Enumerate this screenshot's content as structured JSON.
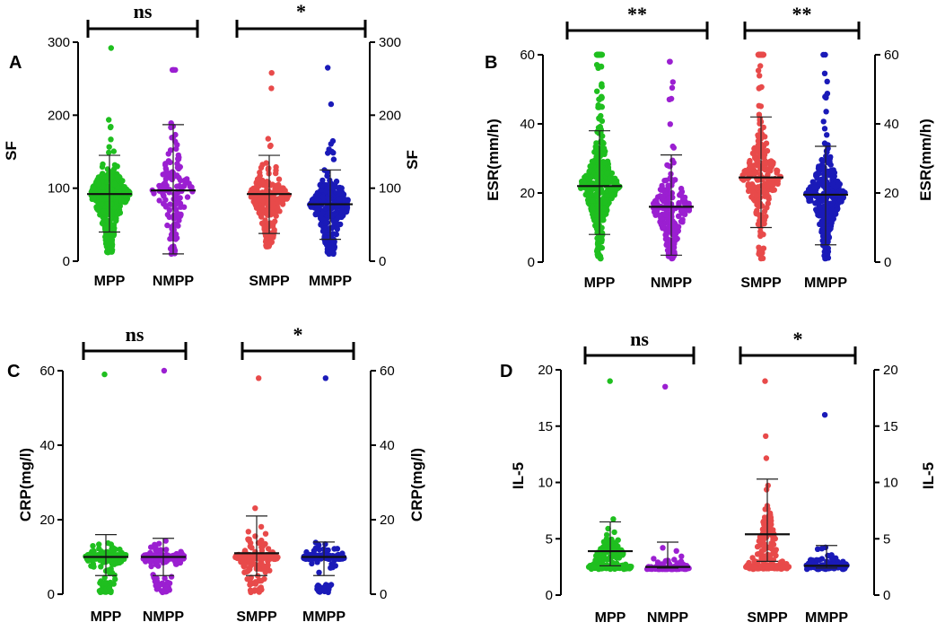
{
  "colors": {
    "MPP": "#1fbf1f",
    "NMPP": "#9b1fd1",
    "SMPP": "#e84a4a",
    "MMPP": "#1a1ab8",
    "axis": "#000000"
  },
  "chart_data": [
    {
      "type": "scatter",
      "panel_label": "A",
      "ylabel_left": "SF",
      "ylabel_right": "SF",
      "ylim": [
        0,
        300
      ],
      "yticks": [
        0,
        100,
        200,
        300
      ],
      "categories": [
        "MPP",
        "NMPP",
        "SMPP",
        "MMPP"
      ],
      "series": [
        {
          "name": "MPP",
          "color": "MPP",
          "mean": 92,
          "sd_low": 40,
          "sd_high": 145,
          "min": 12,
          "max": 292,
          "n": 420,
          "skew": 1.2
        },
        {
          "name": "NMPP",
          "color": "NMPP",
          "mean": 97,
          "sd_low": 10,
          "sd_high": 187,
          "min": 10,
          "max": 262,
          "n": 140,
          "skew": 0.9
        },
        {
          "name": "SMPP",
          "color": "SMPP",
          "mean": 92,
          "sd_low": 38,
          "sd_high": 145,
          "min": 20,
          "max": 258,
          "n": 210,
          "skew": 1.1
        },
        {
          "name": "MMPP",
          "color": "MMPP",
          "mean": 78,
          "sd_low": 30,
          "sd_high": 125,
          "min": 10,
          "max": 265,
          "n": 300,
          "skew": 1.1
        }
      ],
      "comparisons": [
        {
          "between": [
            "MPP",
            "NMPP"
          ],
          "label": "ns"
        },
        {
          "between": [
            "SMPP",
            "MMPP"
          ],
          "label": "*"
        }
      ]
    },
    {
      "type": "scatter",
      "panel_label": "B",
      "ylabel_left": "ESR(mm/h)",
      "ylabel_right": "ESR(mm/h)",
      "ylim": [
        0,
        60
      ],
      "yticks": [
        0,
        20,
        40,
        60
      ],
      "categories": [
        "MPP",
        "NMPP",
        "SMPP",
        "MMPP"
      ],
      "series": [
        {
          "name": "MPP",
          "color": "MPP",
          "mean": 22,
          "sd_low": 8,
          "sd_high": 38,
          "min": 1,
          "max": 60,
          "n": 420,
          "skew": 0.4
        },
        {
          "name": "NMPP",
          "color": "NMPP",
          "mean": 16,
          "sd_low": 2,
          "sd_high": 31,
          "min": 1,
          "max": 58,
          "n": 200,
          "skew": 1.4
        },
        {
          "name": "SMPP",
          "color": "SMPP",
          "mean": 24.5,
          "sd_low": 10,
          "sd_high": 42,
          "min": 1,
          "max": 60,
          "n": 260,
          "skew": 0.3
        },
        {
          "name": "MMPP",
          "color": "MMPP",
          "mean": 19.5,
          "sd_low": 5,
          "sd_high": 33.5,
          "min": 1,
          "max": 60,
          "n": 320,
          "skew": 0.8
        }
      ],
      "comparisons": [
        {
          "between": [
            "MPP",
            "NMPP"
          ],
          "label": "**"
        },
        {
          "between": [
            "SMPP",
            "MMPP"
          ],
          "label": "**"
        }
      ]
    },
    {
      "type": "scatter",
      "panel_label": "C",
      "ylabel_left": "CRP(mg/l)",
      "ylabel_right": "CRP(mg/l)",
      "ylim": [
        0,
        60
      ],
      "yticks": [
        0,
        20,
        40,
        60
      ],
      "categories": [
        "MPP",
        "NMPP",
        "SMPP",
        "MMPP"
      ],
      "series": [
        {
          "name": "MPP",
          "color": "MPP",
          "mean": 10,
          "sd_low": 5,
          "sd_high": 16,
          "min": 0.5,
          "max": 59,
          "n": 180,
          "skew": 2.5,
          "cluster": 10
        },
        {
          "name": "NMPP",
          "color": "NMPP",
          "mean": 10,
          "sd_low": 5,
          "sd_high": 15,
          "min": 0.5,
          "max": 60,
          "n": 190,
          "skew": 2.2,
          "cluster": 10
        },
        {
          "name": "SMPP",
          "color": "SMPP",
          "mean": 11,
          "sd_low": 5,
          "sd_high": 21,
          "min": 0.5,
          "max": 58,
          "n": 230,
          "skew": 2.0,
          "cluster": 10
        },
        {
          "name": "MMPP",
          "color": "MMPP",
          "mean": 10,
          "sd_low": 5,
          "sd_high": 14,
          "min": 0.5,
          "max": 58,
          "n": 150,
          "skew": 2.6,
          "cluster": 10
        }
      ],
      "comparisons": [
        {
          "between": [
            "MPP",
            "NMPP"
          ],
          "label": "ns"
        },
        {
          "between": [
            "SMPP",
            "MMPP"
          ],
          "label": "*"
        }
      ]
    },
    {
      "type": "scatter",
      "panel_label": "D",
      "ylabel_left": "IL-5",
      "ylabel_right": "IL-5",
      "ylim": [
        0,
        20
      ],
      "yticks": [
        0,
        5,
        10,
        15,
        20
      ],
      "categories": [
        "MPP",
        "NMPP",
        "SMPP",
        "MMPP"
      ],
      "series": [
        {
          "name": "MPP",
          "color": "MPP",
          "mean": 3.9,
          "sd_low": 2.6,
          "sd_high": 6.5,
          "min": 2.3,
          "max": 19,
          "n": 200,
          "skew": 2.4,
          "cluster": 2.5
        },
        {
          "name": "NMPP",
          "color": "NMPP",
          "mean": 2.5,
          "sd_low": 2.4,
          "sd_high": 4.7,
          "min": 2.3,
          "max": 18.5,
          "n": 110,
          "skew": 3.0,
          "cluster": 2.4
        },
        {
          "name": "SMPP",
          "color": "SMPP",
          "mean": 5.4,
          "sd_low": 3.0,
          "sd_high": 10.3,
          "min": 2.3,
          "max": 19,
          "n": 260,
          "skew": 1.9,
          "cluster": 2.5
        },
        {
          "name": "MMPP",
          "color": "MMPP",
          "mean": 2.6,
          "sd_low": 2.4,
          "sd_high": 4.4,
          "min": 2.3,
          "max": 16,
          "n": 130,
          "skew": 2.9,
          "cluster": 2.5
        }
      ],
      "comparisons": [
        {
          "between": [
            "MPP",
            "NMPP"
          ],
          "label": "ns"
        },
        {
          "between": [
            "SMPP",
            "MMPP"
          ],
          "label": "*"
        }
      ]
    }
  ]
}
